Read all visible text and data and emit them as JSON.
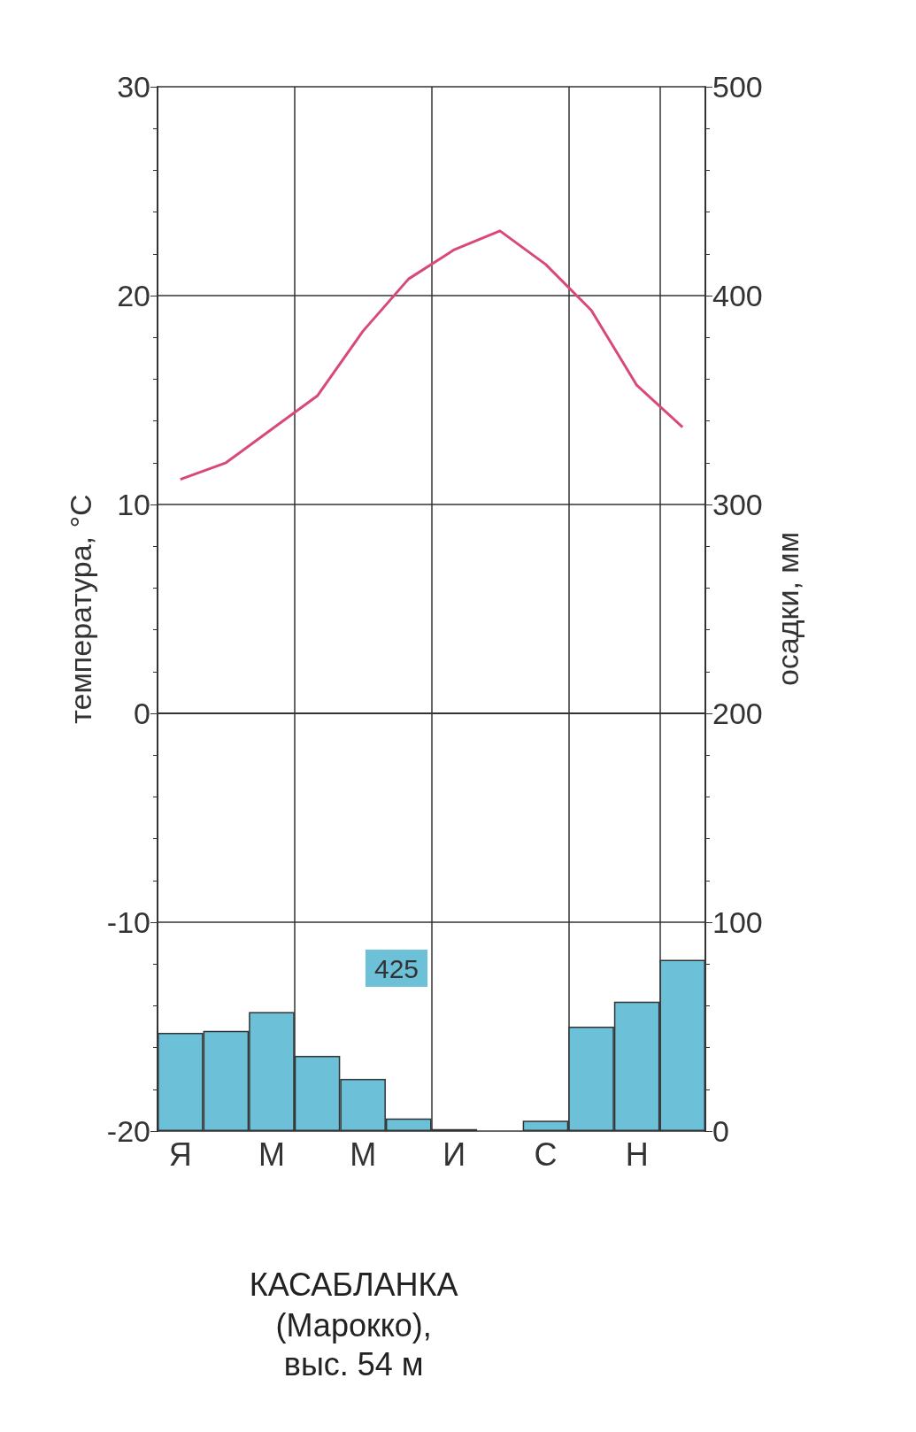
{
  "chart_data": {
    "type": "bar",
    "title": "КАСАБЛАНКА",
    "subtitle": "(Марокко),\nвыс. 54 м",
    "ylabel": "температура, °С",
    "y2label": "осадки, мм",
    "categories": [
      "Я",
      null,
      "М",
      null,
      "М",
      null,
      "И",
      null,
      "С",
      null,
      "Н",
      null
    ],
    "series": [
      {
        "axis": "y2",
        "color": "#6cc0d8",
        "values": [
          47,
          48,
          57,
          36,
          25,
          6,
          1,
          0,
          5,
          50,
          62,
          82
        ]
      },
      {
        "type": "line",
        "axis": "y",
        "color": "#d9487a",
        "values": [
          11.2,
          12,
          13.6,
          15.2,
          18.3,
          20.8,
          22.2,
          23.1,
          21.5,
          19.3,
          15.7,
          13.7
        ]
      }
    ],
    "ylim": [
      -20,
      30
    ],
    "yticks": [
      -20,
      -10,
      0,
      10,
      20,
      30
    ],
    "y2lim": [
      0,
      500
    ],
    "y2ticks": [
      0,
      100,
      200,
      300,
      400,
      500
    ],
    "grid": true,
    "marker": "none",
    "annotations": [
      "425"
    ]
  }
}
